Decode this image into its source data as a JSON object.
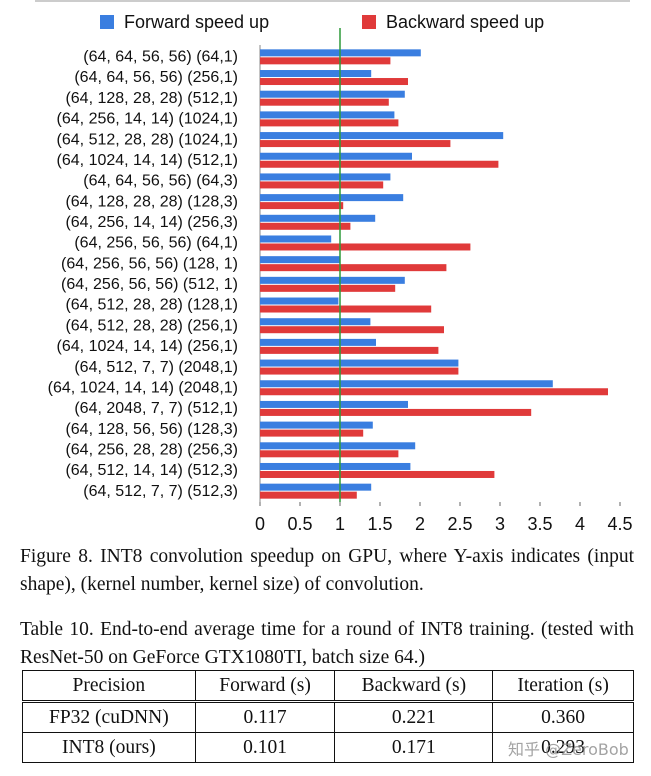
{
  "chart_data": {
    "type": "bar",
    "orientation": "horizontal",
    "categories": [
      "(64, 64, 56, 56) (64,1)",
      "(64, 64, 56, 56) (256,1)",
      "(64, 128, 28, 28) (512,1)",
      "(64, 256, 14, 14) (1024,1)",
      "(64, 512, 28, 28) (1024,1)",
      "(64, 1024, 14, 14) (512,1)",
      "(64, 64, 56, 56) (64,3)",
      "(64, 128, 28, 28) (128,3)",
      "(64, 256, 14, 14) (256,3)",
      "(64, 256, 56, 56) (64,1)",
      "(64, 256, 56, 56) (128, 1)",
      "(64, 256, 56, 56) (512, 1)",
      "(64, 512, 28, 28) (128,1)",
      "(64, 512, 28, 28) (256,1)",
      "(64, 1024, 14, 14) (256,1)",
      "(64, 512, 7, 7) (2048,1)",
      "(64, 1024, 14, 14) (2048,1)",
      "(64, 2048, 7, 7) (512,1)",
      "(64, 128, 56, 56) (128,3)",
      "(64, 256, 28, 28) (256,3)",
      "(64, 512, 14, 14) (512,3)",
      "(64, 512, 7, 7) (512,3)"
    ],
    "series": [
      {
        "name": "Forward speed up",
        "color": "#3a7ee0",
        "values": [
          2.01,
          1.39,
          1.81,
          1.68,
          3.04,
          1.9,
          1.63,
          1.79,
          1.44,
          0.89,
          1.0,
          1.81,
          0.98,
          1.38,
          1.45,
          2.48,
          3.66,
          1.85,
          1.41,
          1.94,
          1.88,
          1.39
        ]
      },
      {
        "name": "Backward speed up",
        "color": "#e03a3a",
        "values": [
          1.63,
          1.85,
          1.61,
          1.73,
          2.38,
          2.98,
          1.54,
          1.04,
          1.13,
          2.63,
          2.33,
          1.69,
          2.14,
          2.3,
          2.23,
          2.48,
          4.35,
          3.39,
          1.29,
          1.73,
          2.93,
          1.21
        ]
      }
    ],
    "xlim": [
      0,
      4.5
    ],
    "xticks": [
      0,
      0.5,
      1,
      1.5,
      2,
      2.5,
      3,
      3.5,
      4,
      4.5
    ],
    "reference_line": {
      "value": 1,
      "color": "#2e9a3a"
    },
    "grid": false,
    "legend": "top"
  },
  "figure_caption": "Figure 8. INT8 convolution speedup on GPU, where Y-axis indicates (input shape), (kernel number, kernel size) of convolution.",
  "table": {
    "caption": "Table 10. End-to-end average time for a round of INT8 training. (tested with ResNet-50 on GeForce GTX1080TI, batch size 64.)",
    "header": [
      "Precision",
      "Forward (s)",
      "Backward (s)",
      "Iteration (s)"
    ],
    "rows": [
      [
        "FP32 (cuDNN)",
        "0.117",
        "0.221",
        "0.360"
      ],
      [
        "INT8 (ours)",
        "0.101",
        "0.171",
        "0.293"
      ]
    ]
  },
  "watermark": "知乎 @ZeroBob"
}
